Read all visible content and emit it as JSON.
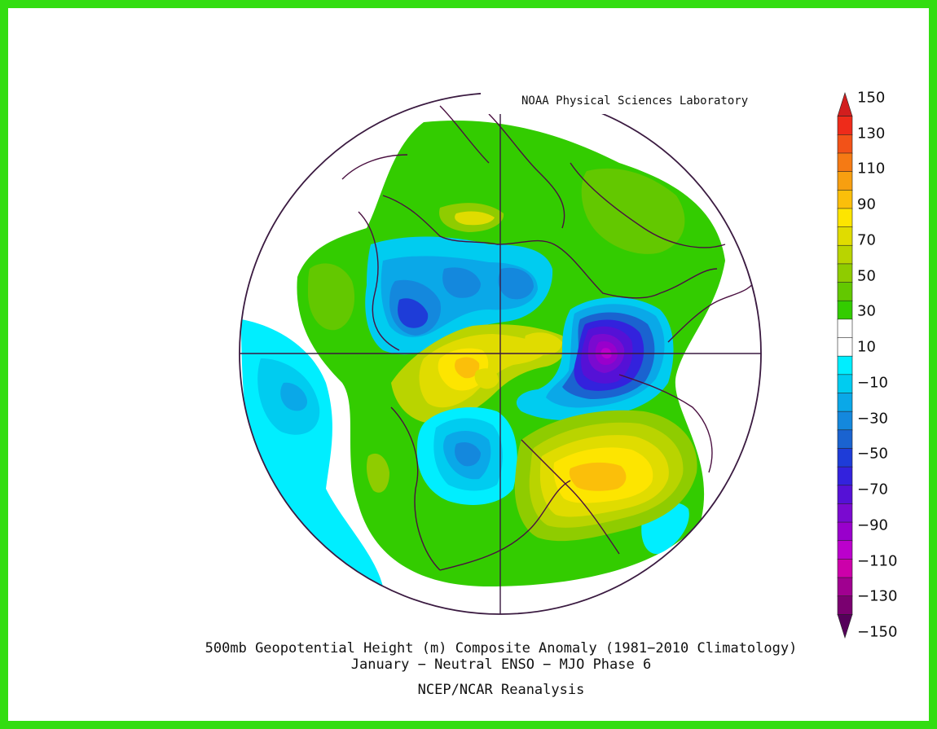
{
  "credit": "NOAA Physical Sciences Laboratory",
  "title_line1": "500mb Geopotential Height (m) Composite Anomaly (1981−2010 Climatology)",
  "title_line2": "January − Neutral ENSO − MJO Phase 6",
  "source": "NCEP/NCAR Reanalysis",
  "frame_color": "#33dd11",
  "colorbar": {
    "labels": [
      "150",
      "130",
      "110",
      "90",
      "70",
      "50",
      "30",
      "10",
      "−10",
      "−30",
      "−50",
      "−70",
      "−90",
      "−110",
      "−130",
      "−150"
    ],
    "colors_top_to_bottom": [
      "#d21e1e",
      "#ee2b1a",
      "#f25218",
      "#f57a14",
      "#f79f10",
      "#fbbf0a",
      "#fde500",
      "#e0dc00",
      "#b9d400",
      "#8fcc00",
      "#63c800",
      "#33cc00",
      "#ffffff",
      "#ffffff",
      "#00eeff",
      "#00ccf0",
      "#0aa8e8",
      "#1488dd",
      "#1a63d0",
      "#1e3cd8",
      "#3322dd",
      "#5511d6",
      "#7a0ad0",
      "#9900cc",
      "#bb00cc",
      "#cc00aa",
      "#a00090",
      "#7a0070",
      "#55005a"
    ]
  },
  "anomaly_centers": [
    {
      "sign": "positive",
      "value": "70",
      "region": "Arctic / North Pole"
    },
    {
      "sign": "positive",
      "value": "70",
      "region": "North Atlantic"
    },
    {
      "sign": "negative",
      "value": "−110",
      "region": "Eastern Siberia / North Pacific"
    },
    {
      "sign": "negative",
      "value": "−50",
      "region": "Northern Europe"
    },
    {
      "sign": "negative",
      "value": "−50",
      "region": "Central Canada"
    },
    {
      "sign": "positive",
      "value": "40",
      "region": "Eastern Pacific"
    },
    {
      "sign": "negative",
      "value": "−20",
      "region": "Tropical Atlantic / Africa"
    }
  ]
}
